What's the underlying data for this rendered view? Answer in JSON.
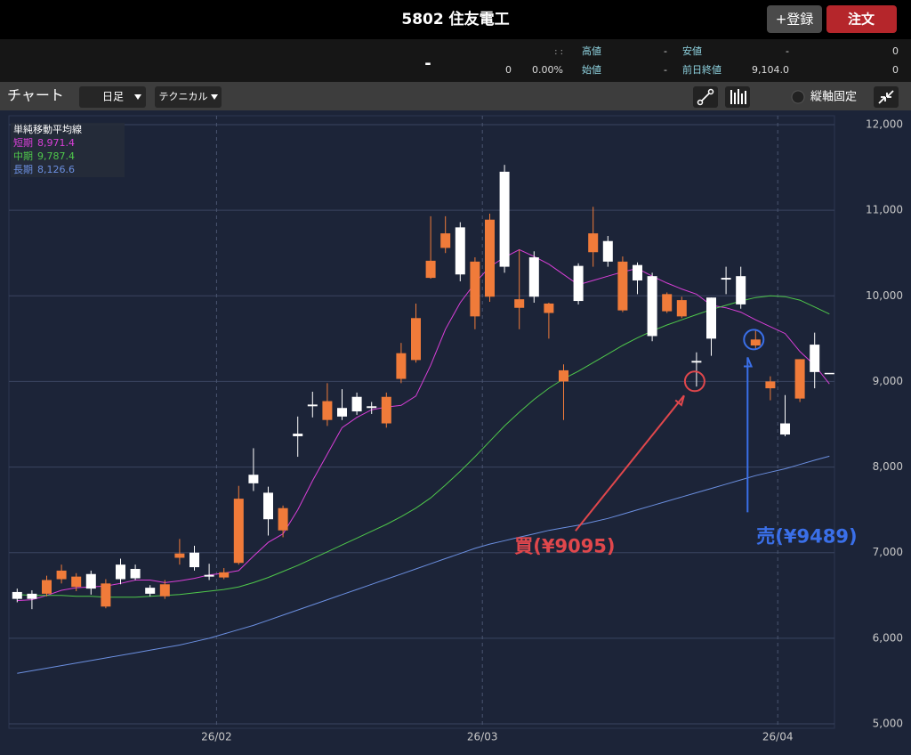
{
  "header": {
    "title": "5802  住友電工",
    "register": "+登録",
    "order": "注文"
  },
  "quote": {
    "price": "-",
    "time": ": :",
    "change": "0",
    "change_pct": "0.00%",
    "rows": [
      [
        "高値",
        "-",
        "安値",
        "-",
        "0"
      ],
      [
        "始値",
        "-",
        "前日終値",
        "9,104.0",
        "0"
      ]
    ]
  },
  "toolbar": {
    "label": "チャート",
    "period": "日足",
    "technical": "テクニカル",
    "fixed_axis": "縦軸固定"
  },
  "chart_data": {
    "type": "candlestick",
    "categories": [
      null,
      null,
      null,
      null,
      null,
      null,
      null,
      null,
      null,
      null,
      null,
      null,
      null,
      null,
      "26/02",
      null,
      null,
      null,
      null,
      null,
      null,
      null,
      null,
      null,
      null,
      null,
      null,
      null,
      null,
      null,
      null,
      null,
      "26/03",
      null,
      null,
      null,
      null,
      null,
      null,
      null,
      null,
      null,
      null,
      null,
      null,
      null,
      null,
      null,
      null,
      null,
      null,
      null,
      "26/04",
      null,
      null,
      null
    ],
    "ohlc": {
      "up_color": "#ffffff",
      "down_color": "#f07b3a",
      "open": [
        6460,
        6460,
        6680,
        6790,
        6720,
        6580,
        6640,
        6690,
        6700,
        6520,
        6630,
        6990,
        6830,
        6720,
        6770,
        7630,
        7810,
        7390,
        7520,
        8360,
        8710,
        8770,
        8590,
        8650,
        8690,
        8820,
        9330,
        9740,
        10410,
        10730,
        10250,
        10400,
        10890,
        10340,
        9960,
        9990,
        9910,
        9130,
        9940,
        10730,
        10400,
        10400,
        10180,
        9530,
        10020,
        9950,
        9220,
        9500,
        10190,
        9900,
        9490,
        9000,
        8380,
        9260,
        9110,
        9100
      ],
      "high": [
        6580,
        6560,
        6730,
        6860,
        6760,
        6790,
        6690,
        6930,
        6860,
        6620,
        6680,
        7160,
        7080,
        6870,
        6820,
        7780,
        8220,
        7770,
        7550,
        8590,
        8880,
        8980,
        8910,
        8870,
        8760,
        8870,
        9450,
        9910,
        10930,
        10930,
        10860,
        10450,
        10960,
        11530,
        10540,
        10520,
        9920,
        9200,
        10380,
        11040,
        10700,
        10460,
        10390,
        10270,
        10040,
        9990,
        9340,
        9980,
        10340,
        10340,
        9610,
        9060,
        8840,
        9260,
        9570,
        9100
      ],
      "low": [
        6420,
        6340,
        6490,
        6640,
        6550,
        6510,
        6350,
        6630,
        6680,
        6490,
        6460,
        6860,
        6790,
        6680,
        6690,
        6860,
        7720,
        7200,
        7180,
        8120,
        8580,
        8480,
        8550,
        8610,
        8620,
        8460,
        8980,
        9220,
        10200,
        10500,
        10170,
        9610,
        9930,
        10270,
        9610,
        9920,
        9500,
        8550,
        9900,
        10340,
        10340,
        9810,
        10020,
        9470,
        9800,
        9740,
        8940,
        9300,
        10020,
        9850,
        9380,
        8780,
        8360,
        8760,
        8920,
        9100
      ],
      "close": [
        6540,
        6520,
        6520,
        6690,
        6600,
        6750,
        6370,
        6860,
        6810,
        6590,
        6490,
        6940,
        7000,
        6740,
        6710,
        6880,
        7910,
        7700,
        7260,
        8390,
        8730,
        8550,
        8690,
        8820,
        8710,
        8510,
        9030,
        9250,
        10210,
        10560,
        10800,
        9760,
        9990,
        11450,
        9860,
        10450,
        9800,
        9000,
        10350,
        10510,
        10640,
        9830,
        10360,
        10230,
        9820,
        9760,
        9240,
        9980,
        10210,
        10230,
        9420,
        8920,
        8510,
        8800,
        9430,
        9100
      ]
    },
    "legend_title": "単純移動平均線",
    "series": [
      {
        "name": "短期",
        "color": "#d93fd8",
        "values": [
          6440,
          6450,
          6500,
          6560,
          6590,
          6600,
          6610,
          6640,
          6680,
          6680,
          6650,
          6670,
          6700,
          6740,
          6760,
          6790,
          6960,
          7120,
          7220,
          7500,
          7840,
          8150,
          8460,
          8580,
          8670,
          8700,
          8720,
          8830,
          9190,
          9610,
          9920,
          10150,
          10340,
          10450,
          10540,
          10460,
          10370,
          10250,
          10130,
          10180,
          10230,
          10280,
          10320,
          10230,
          10150,
          10080,
          10020,
          9890,
          9860,
          9810,
          9720,
          9640,
          9560,
          9350,
          9190,
          8971.4
        ],
        "value_labels": [
          null,
          null,
          null,
          null,
          null,
          null,
          null,
          null,
          null,
          null,
          null,
          null,
          null,
          null,
          null,
          null,
          null,
          null,
          null,
          null,
          null,
          null,
          null,
          null,
          null,
          null,
          null,
          null,
          null,
          null,
          null,
          null,
          null,
          null,
          null,
          null,
          null,
          null,
          null,
          null,
          null,
          null,
          null,
          null,
          null,
          null,
          null,
          null,
          null,
          null,
          null,
          null,
          null,
          null,
          null,
          "8,971.4"
        ]
      },
      {
        "name": "中期",
        "color": "#4fc84b",
        "values": [
          6510,
          6500,
          6500,
          6500,
          6490,
          6490,
          6480,
          6480,
          6480,
          6490,
          6500,
          6510,
          6530,
          6550,
          6570,
          6600,
          6650,
          6710,
          6780,
          6850,
          6930,
          7010,
          7090,
          7170,
          7250,
          7330,
          7420,
          7520,
          7640,
          7790,
          7950,
          8120,
          8300,
          8480,
          8640,
          8790,
          8920,
          9030,
          9120,
          9220,
          9320,
          9420,
          9510,
          9590,
          9660,
          9720,
          9780,
          9840,
          9890,
          9940,
          9980,
          10000,
          9990,
          9950,
          9870,
          9787.4
        ],
        "value_labels": [
          null,
          null,
          null,
          null,
          null,
          null,
          null,
          null,
          null,
          null,
          null,
          null,
          null,
          null,
          null,
          null,
          null,
          null,
          null,
          null,
          null,
          null,
          null,
          null,
          null,
          null,
          null,
          null,
          null,
          null,
          null,
          null,
          null,
          null,
          null,
          null,
          null,
          null,
          null,
          null,
          null,
          null,
          null,
          null,
          null,
          null,
          null,
          null,
          null,
          null,
          null,
          null,
          null,
          null,
          null,
          "9,787.4"
        ]
      },
      {
        "name": "長期",
        "color": "#6b8fe0",
        "values": [
          5590,
          5620,
          5650,
          5680,
          5710,
          5740,
          5770,
          5800,
          5830,
          5860,
          5890,
          5920,
          5960,
          6000,
          6050,
          6100,
          6150,
          6210,
          6270,
          6330,
          6390,
          6450,
          6510,
          6570,
          6630,
          6690,
          6750,
          6810,
          6870,
          6930,
          6990,
          7050,
          7100,
          7140,
          7180,
          7220,
          7260,
          7290,
          7320,
          7360,
          7400,
          7450,
          7500,
          7550,
          7600,
          7650,
          7700,
          7750,
          7800,
          7850,
          7900,
          7940,
          7980,
          8030,
          8080,
          8126.6
        ],
        "value_labels": [
          null,
          null,
          null,
          null,
          null,
          null,
          null,
          null,
          null,
          null,
          null,
          null,
          null,
          null,
          null,
          null,
          null,
          null,
          null,
          null,
          null,
          null,
          null,
          null,
          null,
          null,
          null,
          null,
          null,
          null,
          null,
          null,
          null,
          null,
          null,
          null,
          null,
          null,
          null,
          null,
          null,
          null,
          null,
          null,
          null,
          null,
          null,
          null,
          null,
          null,
          null,
          null,
          null,
          null,
          null,
          "8,126.6"
        ]
      }
    ],
    "ylim": [
      5000,
      12000
    ],
    "yticks": [
      {
        "value": 5000,
        "label": "5,000"
      },
      {
        "value": 6000,
        "label": "6,000"
      },
      {
        "value": 7000,
        "label": "7,000"
      },
      {
        "value": 8000,
        "label": "8,000"
      },
      {
        "value": 9000,
        "label": "9,000"
      },
      {
        "value": 10000,
        "label": "10,000"
      },
      {
        "value": 11000,
        "label": "11,000"
      },
      {
        "value": 12000,
        "label": "12,000"
      }
    ],
    "grid": true,
    "annotations": [
      {
        "text": "買(¥9095)",
        "value": 9095,
        "index": 46,
        "color": "#e0474c"
      },
      {
        "text": "売(¥9489)",
        "value": 9489,
        "index": 50,
        "color": "#3a6fe8"
      }
    ]
  }
}
